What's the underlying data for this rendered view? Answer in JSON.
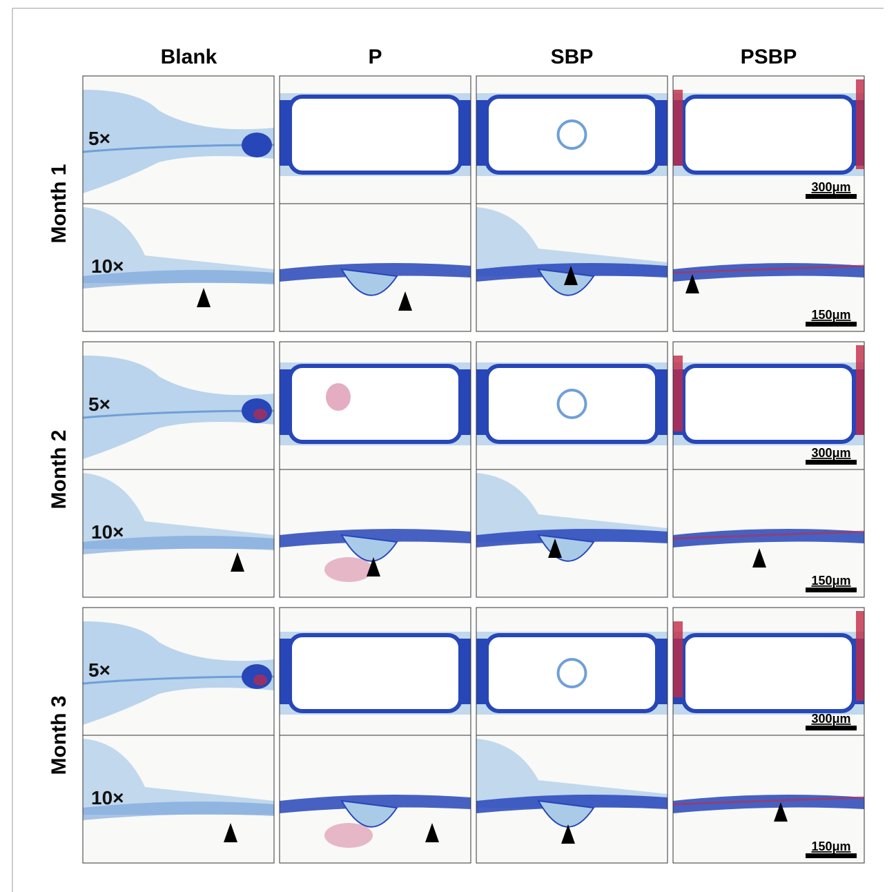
{
  "columns": [
    "Blank",
    "P",
    "SBP",
    "PSBP"
  ],
  "rows": [
    {
      "label": "Month 1",
      "magnifications": [
        "5×",
        "10×"
      ],
      "scale_bars": [
        "300μm",
        "150μm"
      ]
    },
    {
      "label": "Month 2",
      "magnifications": [
        "5×",
        "10×"
      ],
      "scale_bars": [
        "300μm",
        "150μm"
      ]
    },
    {
      "label": "Month 3",
      "magnifications": [
        "5×",
        "10×"
      ],
      "scale_bars": [
        "300μm",
        "150μm"
      ]
    }
  ]
}
